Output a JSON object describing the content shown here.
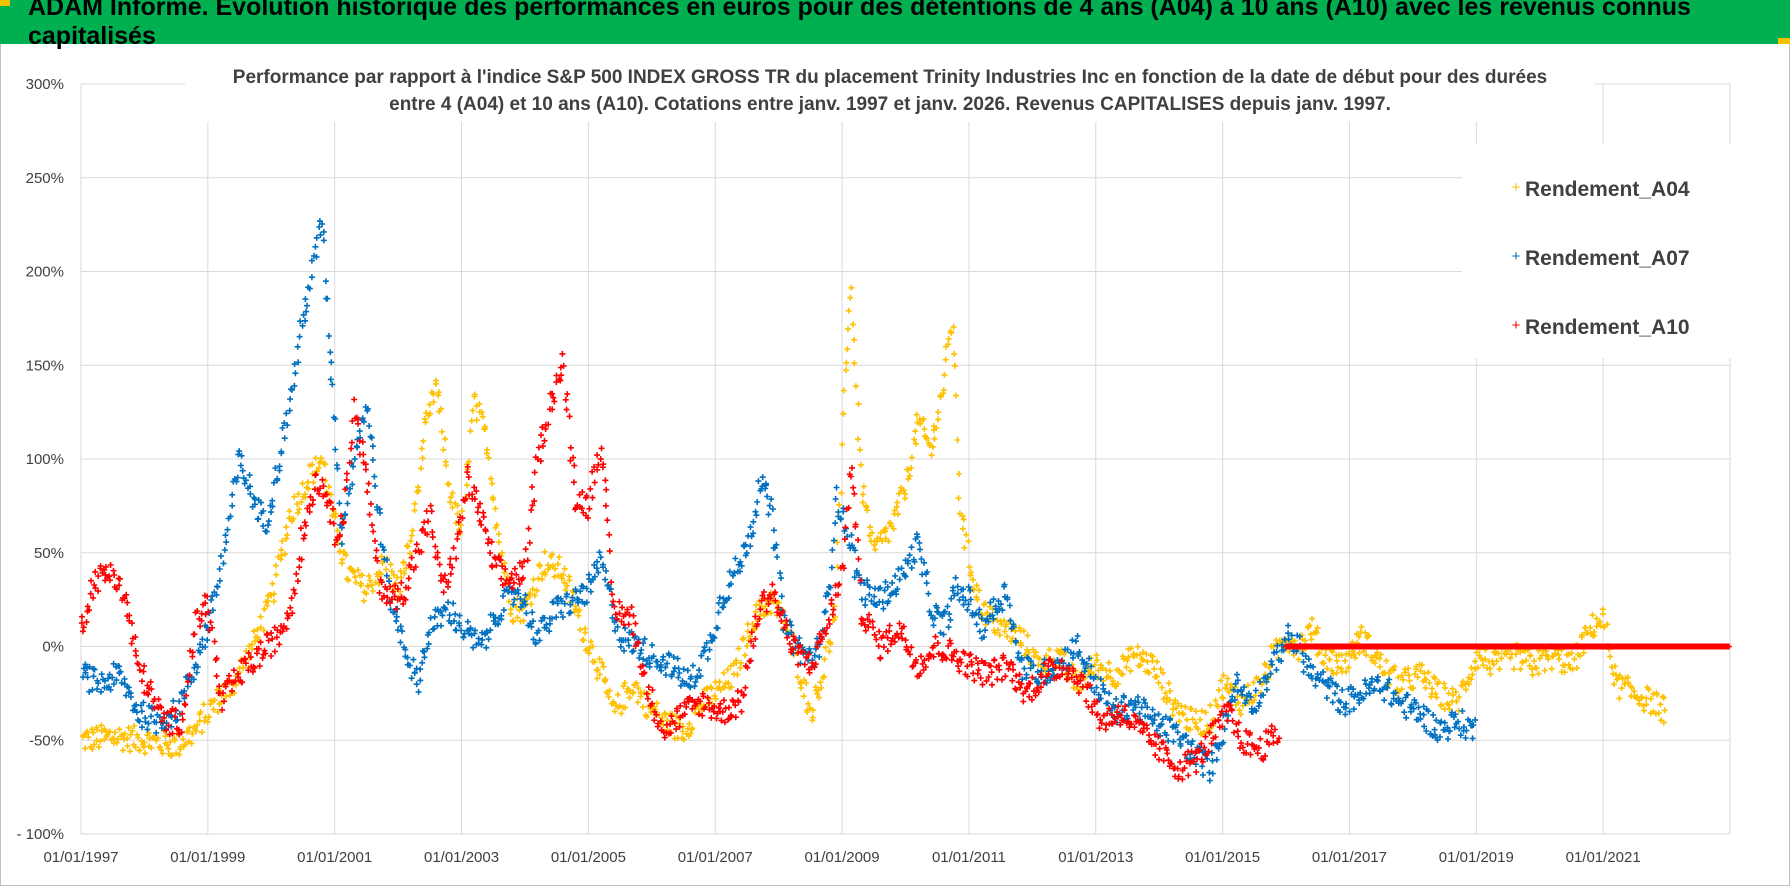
{
  "header": {
    "text": "ADAM Informe. Evolution historique des performances en euros pour des détentions de 4 ans (A04) à 10 ans (A10) avec les revenus connus capitalisés"
  },
  "colors": {
    "header_bg": "#00b050",
    "A04": "#ffc000",
    "A07": "#0070c0",
    "A10": "#ff0000",
    "grid": "#d9d9d9",
    "text": "#404040"
  },
  "chart_data": {
    "type": "scatter",
    "title_lines": [
      "Performance par rapport à l'indice S&P 500 INDEX GROSS TR  du placement Trinity Industries Inc en fonction de la date de début pour des durées",
      "entre 4 (A04) et 10 ans (A10).  Cotations entre janv. 1997 et janv. 2026. Revenus CAPITALISES  depuis janv. 1997."
    ],
    "xlabel": "",
    "ylabel": "",
    "x_range": [
      1997.0,
      2023.0
    ],
    "ylim": [
      -100,
      300
    ],
    "y_ticks": [
      -100,
      -50,
      0,
      50,
      100,
      150,
      200,
      250,
      300
    ],
    "y_tick_labels": [
      "- 100%",
      "-50%",
      "0%",
      "50%",
      "100%",
      "150%",
      "200%",
      "250%",
      "300%"
    ],
    "x_ticks": [
      1997,
      1999,
      2001,
      2003,
      2005,
      2007,
      2009,
      2011,
      2013,
      2015,
      2017,
      2019,
      2021
    ],
    "x_tick_labels": [
      "01/01/1997",
      "01/01/1999",
      "01/01/2001",
      "01/01/2003",
      "01/01/2005",
      "01/01/2007",
      "01/01/2009",
      "01/01/2011",
      "01/01/2013",
      "01/01/2015",
      "01/01/2017",
      "01/01/2019",
      "01/01/2021"
    ],
    "grid": true,
    "legend_position": "top-right",
    "series": [
      {
        "name": "Rendement_A04",
        "color": "#ffc000",
        "points": [
          [
            1997.0,
            -50
          ],
          [
            1997.5,
            -48
          ],
          [
            1998.0,
            -50
          ],
          [
            1998.5,
            -53
          ],
          [
            1998.8,
            -45
          ],
          [
            1999.1,
            -30
          ],
          [
            1999.4,
            -20
          ],
          [
            1999.7,
            0
          ],
          [
            2000.0,
            25
          ],
          [
            2000.3,
            70
          ],
          [
            2000.6,
            90
          ],
          [
            2000.8,
            100
          ],
          [
            2001.0,
            65
          ],
          [
            2001.2,
            40
          ],
          [
            2001.5,
            30
          ],
          [
            2001.8,
            45
          ],
          [
            2002.0,
            30
          ],
          [
            2002.2,
            55
          ],
          [
            2002.4,
            110
          ],
          [
            2002.6,
            140
          ],
          [
            2002.8,
            85
          ],
          [
            2003.0,
            60
          ],
          [
            2003.2,
            130
          ],
          [
            2003.4,
            110
          ],
          [
            2003.6,
            55
          ],
          [
            2003.8,
            20
          ],
          [
            2004.0,
            20
          ],
          [
            2004.3,
            45
          ],
          [
            2004.6,
            40
          ],
          [
            2004.9,
            10
          ],
          [
            2005.1,
            -5
          ],
          [
            2005.4,
            -35
          ],
          [
            2005.7,
            -20
          ],
          [
            2005.9,
            -30
          ],
          [
            2006.2,
            -40
          ],
          [
            2006.5,
            -45
          ],
          [
            2006.8,
            -30
          ],
          [
            2007.0,
            -25
          ],
          [
            2007.3,
            -15
          ],
          [
            2007.6,
            15
          ],
          [
            2007.9,
            25
          ],
          [
            2008.2,
            5
          ],
          [
            2008.5,
            -35
          ],
          [
            2008.7,
            -15
          ],
          [
            2008.9,
            20
          ],
          [
            2009.05,
            150
          ],
          [
            2009.15,
            190
          ],
          [
            2009.3,
            90
          ],
          [
            2009.5,
            50
          ],
          [
            2009.8,
            65
          ],
          [
            2010.0,
            85
          ],
          [
            2010.2,
            120
          ],
          [
            2010.4,
            105
          ],
          [
            2010.6,
            140
          ],
          [
            2010.75,
            175
          ],
          [
            2010.85,
            80
          ],
          [
            2011.0,
            45
          ],
          [
            2011.2,
            20
          ],
          [
            2011.5,
            10
          ],
          [
            2011.8,
            5
          ],
          [
            2012.1,
            -10
          ],
          [
            2012.4,
            -5
          ],
          [
            2012.7,
            -20
          ],
          [
            2013.0,
            -10
          ],
          [
            2013.3,
            -15
          ],
          [
            2013.6,
            -5
          ],
          [
            2013.9,
            -10
          ],
          [
            2014.2,
            -30
          ],
          [
            2014.5,
            -40
          ],
          [
            2014.8,
            -40
          ],
          [
            2015.0,
            -20
          ],
          [
            2015.3,
            -30
          ],
          [
            2015.6,
            -20
          ],
          [
            2015.8,
            -5
          ],
          [
            2016.0,
            5
          ],
          [
            2016.2,
            0
          ],
          [
            2016.4,
            10
          ],
          [
            2016.6,
            -5
          ],
          [
            2016.9,
            -10
          ],
          [
            2017.2,
            5
          ],
          [
            2017.5,
            -10
          ],
          [
            2017.8,
            -20
          ],
          [
            2018.1,
            -15
          ],
          [
            2018.4,
            -25
          ],
          [
            2018.7,
            -30
          ],
          [
            2019.0,
            -5
          ],
          [
            2019.3,
            -10
          ],
          [
            2019.6,
            -5
          ],
          [
            2019.9,
            -10
          ],
          [
            2020.2,
            -5
          ],
          [
            2020.5,
            -10
          ],
          [
            2020.8,
            10
          ],
          [
            2021.0,
            15
          ],
          [
            2021.2,
            -20
          ],
          [
            2021.5,
            -25
          ],
          [
            2021.8,
            -30
          ],
          [
            2022.0,
            -35
          ]
        ]
      },
      {
        "name": "Rendement_A07",
        "color": "#0070c0",
        "points": [
          [
            1997.0,
            -15
          ],
          [
            1997.3,
            -20
          ],
          [
            1997.6,
            -15
          ],
          [
            1997.9,
            -35
          ],
          [
            1998.2,
            -40
          ],
          [
            1998.5,
            -35
          ],
          [
            1998.8,
            -10
          ],
          [
            1999.0,
            10
          ],
          [
            1999.2,
            40
          ],
          [
            1999.35,
            70
          ],
          [
            1999.5,
            100
          ],
          [
            1999.7,
            80
          ],
          [
            1999.9,
            65
          ],
          [
            2000.1,
            95
          ],
          [
            2000.3,
            130
          ],
          [
            2000.5,
            175
          ],
          [
            2000.65,
            200
          ],
          [
            2000.8,
            230
          ],
          [
            2000.9,
            170
          ],
          [
            2001.0,
            120
          ],
          [
            2001.1,
            60
          ],
          [
            2001.3,
            100
          ],
          [
            2001.5,
            130
          ],
          [
            2001.7,
            70
          ],
          [
            2001.85,
            30
          ],
          [
            2002.1,
            0
          ],
          [
            2002.3,
            -20
          ],
          [
            2002.5,
            10
          ],
          [
            2002.8,
            20
          ],
          [
            2003.0,
            10
          ],
          [
            2003.3,
            0
          ],
          [
            2003.6,
            20
          ],
          [
            2003.9,
            30
          ],
          [
            2004.2,
            5
          ],
          [
            2004.5,
            20
          ],
          [
            2004.8,
            25
          ],
          [
            2005.0,
            30
          ],
          [
            2005.2,
            45
          ],
          [
            2005.5,
            5
          ],
          [
            2005.8,
            0
          ],
          [
            2006.0,
            -5
          ],
          [
            2006.3,
            -10
          ],
          [
            2006.6,
            -20
          ],
          [
            2006.9,
            0
          ],
          [
            2007.1,
            25
          ],
          [
            2007.4,
            45
          ],
          [
            2007.6,
            65
          ],
          [
            2007.7,
            90
          ],
          [
            2007.9,
            70
          ],
          [
            2008.1,
            10
          ],
          [
            2008.4,
            -5
          ],
          [
            2008.6,
            -5
          ],
          [
            2008.8,
            30
          ],
          [
            2008.9,
            80
          ],
          [
            2009.1,
            60
          ],
          [
            2009.3,
            30
          ],
          [
            2009.6,
            25
          ],
          [
            2009.9,
            35
          ],
          [
            2010.2,
            55
          ],
          [
            2010.4,
            20
          ],
          [
            2010.6,
            10
          ],
          [
            2010.8,
            30
          ],
          [
            2011.0,
            25
          ],
          [
            2011.2,
            10
          ],
          [
            2011.4,
            20
          ],
          [
            2011.6,
            30
          ],
          [
            2011.8,
            -10
          ],
          [
            2012.1,
            -15
          ],
          [
            2012.4,
            -10
          ],
          [
            2012.7,
            0
          ],
          [
            2013.0,
            -20
          ],
          [
            2013.3,
            -35
          ],
          [
            2013.6,
            -30
          ],
          [
            2013.9,
            -40
          ],
          [
            2014.2,
            -45
          ],
          [
            2014.5,
            -55
          ],
          [
            2014.8,
            -65
          ],
          [
            2015.0,
            -45
          ],
          [
            2015.2,
            -20
          ],
          [
            2015.5,
            -30
          ],
          [
            2015.8,
            -10
          ],
          [
            2016.0,
            5
          ],
          [
            2016.2,
            0
          ],
          [
            2016.4,
            -15
          ],
          [
            2016.6,
            -20
          ],
          [
            2016.9,
            -30
          ],
          [
            2017.2,
            -25
          ],
          [
            2017.5,
            -20
          ],
          [
            2017.8,
            -30
          ],
          [
            2018.1,
            -35
          ],
          [
            2018.4,
            -45
          ],
          [
            2018.7,
            -40
          ],
          [
            2019.0,
            -45
          ]
        ]
      },
      {
        "name": "Rendement_A10",
        "color": "#ff0000",
        "points": [
          [
            1997.0,
            10
          ],
          [
            1997.2,
            35
          ],
          [
            1997.5,
            40
          ],
          [
            1997.7,
            25
          ],
          [
            1997.9,
            -10
          ],
          [
            1998.1,
            -25
          ],
          [
            1998.3,
            -40
          ],
          [
            1998.6,
            -40
          ],
          [
            1998.8,
            10
          ],
          [
            1999.0,
            25
          ],
          [
            1999.2,
            -30
          ],
          [
            1999.5,
            -15
          ],
          [
            1999.8,
            -5
          ],
          [
            2000.1,
            5
          ],
          [
            2000.3,
            20
          ],
          [
            2000.5,
            60
          ],
          [
            2000.7,
            90
          ],
          [
            2000.9,
            80
          ],
          [
            2001.0,
            60
          ],
          [
            2001.15,
            70
          ],
          [
            2001.3,
            130
          ],
          [
            2001.5,
            90
          ],
          [
            2001.7,
            35
          ],
          [
            2001.9,
            25
          ],
          [
            2002.1,
            30
          ],
          [
            2002.3,
            50
          ],
          [
            2002.5,
            70
          ],
          [
            2002.7,
            30
          ],
          [
            2002.9,
            50
          ],
          [
            2003.1,
            90
          ],
          [
            2003.3,
            70
          ],
          [
            2003.5,
            45
          ],
          [
            2003.7,
            35
          ],
          [
            2004.0,
            40
          ],
          [
            2004.2,
            100
          ],
          [
            2004.4,
            130
          ],
          [
            2004.6,
            150
          ],
          [
            2004.8,
            80
          ],
          [
            2005.0,
            75
          ],
          [
            2005.2,
            110
          ],
          [
            2005.4,
            20
          ],
          [
            2005.7,
            15
          ],
          [
            2005.9,
            -20
          ],
          [
            2006.2,
            -45
          ],
          [
            2006.5,
            -35
          ],
          [
            2006.8,
            -30
          ],
          [
            2007.1,
            -35
          ],
          [
            2007.4,
            -30
          ],
          [
            2007.7,
            20
          ],
          [
            2007.9,
            30
          ],
          [
            2008.2,
            0
          ],
          [
            2008.5,
            -10
          ],
          [
            2008.8,
            15
          ],
          [
            2009.0,
            40
          ],
          [
            2009.15,
            100
          ],
          [
            2009.3,
            20
          ],
          [
            2009.6,
            0
          ],
          [
            2009.9,
            10
          ],
          [
            2010.2,
            -10
          ],
          [
            2010.5,
            0
          ],
          [
            2010.8,
            -5
          ],
          [
            2011.0,
            -10
          ],
          [
            2011.3,
            -15
          ],
          [
            2011.6,
            -10
          ],
          [
            2011.9,
            -25
          ],
          [
            2012.2,
            -15
          ],
          [
            2012.5,
            -10
          ],
          [
            2012.8,
            -20
          ],
          [
            2013.1,
            -40
          ],
          [
            2013.4,
            -35
          ],
          [
            2013.7,
            -45
          ],
          [
            2014.0,
            -55
          ],
          [
            2014.3,
            -65
          ],
          [
            2014.6,
            -60
          ],
          [
            2014.9,
            -45
          ],
          [
            2015.1,
            -35
          ],
          [
            2015.3,
            -50
          ],
          [
            2015.6,
            -55
          ],
          [
            2015.9,
            -45
          ]
        ]
      },
      {
        "name": "Rendement_A10 (0% line)",
        "color": "#ff0000",
        "points": [
          [
            2016.0,
            0
          ],
          [
            2023.0,
            0
          ]
        ]
      }
    ],
    "legend": [
      "Rendement_A04",
      "Rendement_A07",
      "Rendement_A10"
    ]
  }
}
